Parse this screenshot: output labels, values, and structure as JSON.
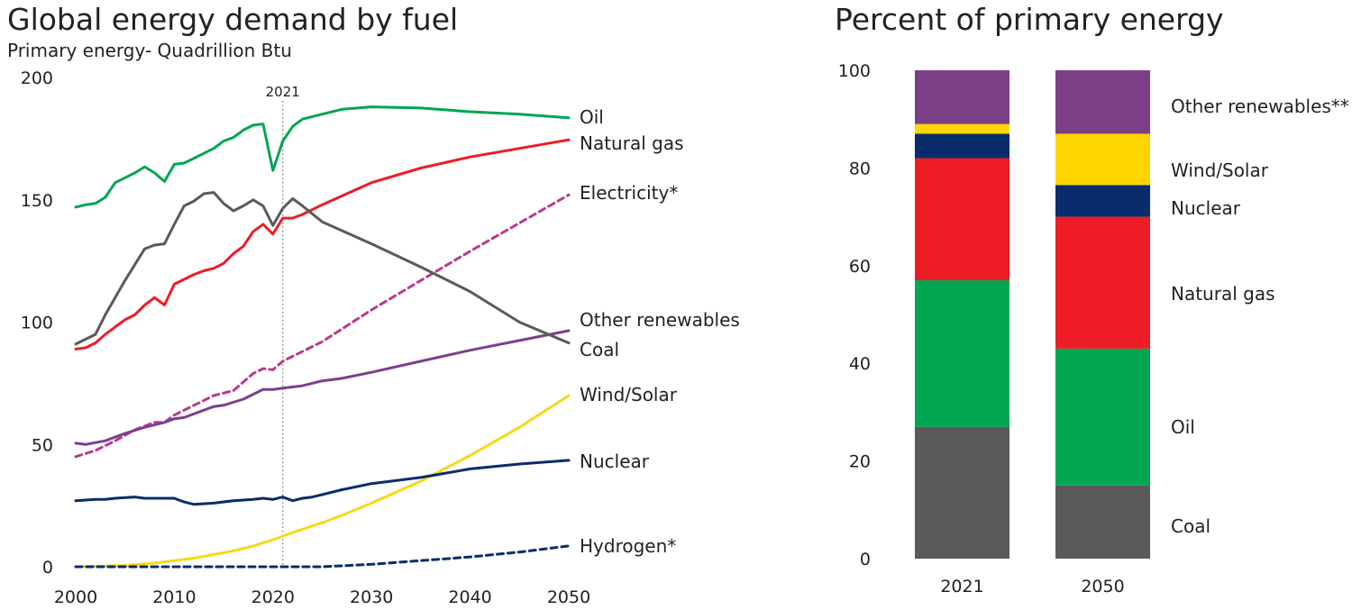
{
  "chart_data": [
    {
      "type": "line",
      "title": "Global energy demand by fuel",
      "subtitle": "Primary energy- Quadrillion Btu",
      "xlabel": "",
      "ylabel": "",
      "xlim": [
        2000,
        2050
      ],
      "ylim": [
        0,
        200
      ],
      "xticks": [
        "2000",
        "2010",
        "2020",
        "2030",
        "2040",
        "2050"
      ],
      "yticks": [
        "0",
        "50",
        "100",
        "150",
        "200"
      ],
      "annotation": {
        "label": "2021",
        "x": 2021
      },
      "grid": false,
      "series": [
        {
          "name": "Oil",
          "color": "#00a651",
          "dash": false,
          "points": [
            [
              2000,
              147
            ],
            [
              2001,
              148
            ],
            [
              2002,
              148.5
            ],
            [
              2003,
              151
            ],
            [
              2004,
              157
            ],
            [
              2005,
              159
            ],
            [
              2006,
              161
            ],
            [
              2007,
              163.5
            ],
            [
              2008,
              161
            ],
            [
              2009,
              157.5
            ],
            [
              2010,
              164.5
            ],
            [
              2011,
              165
            ],
            [
              2012,
              167
            ],
            [
              2013,
              169
            ],
            [
              2014,
              171
            ],
            [
              2015,
              174
            ],
            [
              2016,
              175.5
            ],
            [
              2017,
              178.5
            ],
            [
              2018,
              180.5
            ],
            [
              2019,
              181
            ],
            [
              2020,
              162
            ],
            [
              2021,
              174
            ],
            [
              2022,
              180
            ],
            [
              2023,
              183
            ],
            [
              2025,
              185
            ],
            [
              2027,
              187
            ],
            [
              2030,
              188
            ],
            [
              2035,
              187.5
            ],
            [
              2040,
              186
            ],
            [
              2045,
              185
            ],
            [
              2050,
              183.5
            ]
          ]
        },
        {
          "name": "Natural gas",
          "color": "#ee1c25",
          "dash": false,
          "points": [
            [
              2000,
              89
            ],
            [
              2001,
              89.5
            ],
            [
              2002,
              91.5
            ],
            [
              2003,
              95
            ],
            [
              2004,
              98
            ],
            [
              2005,
              101
            ],
            [
              2006,
              103
            ],
            [
              2007,
              107
            ],
            [
              2008,
              110
            ],
            [
              2009,
              107
            ],
            [
              2010,
              115.5
            ],
            [
              2011,
              117.5
            ],
            [
              2012,
              119.5
            ],
            [
              2013,
              121
            ],
            [
              2014,
              122
            ],
            [
              2015,
              124
            ],
            [
              2016,
              128
            ],
            [
              2017,
              131
            ],
            [
              2018,
              137
            ],
            [
              2019,
              140
            ],
            [
              2020,
              136
            ],
            [
              2021,
              142.5
            ],
            [
              2022,
              142.5
            ],
            [
              2023,
              144
            ],
            [
              2025,
              148
            ],
            [
              2030,
              157
            ],
            [
              2035,
              163
            ],
            [
              2040,
              167.5
            ],
            [
              2045,
              171
            ],
            [
              2050,
              174.5
            ]
          ]
        },
        {
          "name": "Electricity*",
          "color": "#b83b8b",
          "dash": true,
          "points": [
            [
              2000,
              45
            ],
            [
              2002,
              47.5
            ],
            [
              2004,
              51.5
            ],
            [
              2006,
              56
            ],
            [
              2008,
              59
            ],
            [
              2009,
              59
            ],
            [
              2010,
              62
            ],
            [
              2012,
              66
            ],
            [
              2014,
              70
            ],
            [
              2016,
              72
            ],
            [
              2018,
              79
            ],
            [
              2019,
              81
            ],
            [
              2020,
              80.5
            ],
            [
              2021,
              84
            ],
            [
              2025,
              92
            ],
            [
              2030,
              105
            ],
            [
              2035,
              117
            ],
            [
              2040,
              129
            ],
            [
              2045,
              140.5
            ],
            [
              2050,
              152
            ]
          ]
        },
        {
          "name": "Other renewables",
          "color": "#7b3f8e",
          "dash": false,
          "points": [
            [
              2000,
              50.5
            ],
            [
              2001,
              50
            ],
            [
              2003,
              51.5
            ],
            [
              2005,
              54.5
            ],
            [
              2007,
              57
            ],
            [
              2009,
              59
            ],
            [
              2010,
              60.5
            ],
            [
              2011,
              61
            ],
            [
              2013,
              64
            ],
            [
              2014,
              65.5
            ],
            [
              2015,
              66
            ],
            [
              2017,
              68.5
            ],
            [
              2019,
              72.5
            ],
            [
              2020,
              72.5
            ],
            [
              2021,
              73
            ],
            [
              2023,
              74
            ],
            [
              2025,
              76
            ],
            [
              2027,
              77
            ],
            [
              2030,
              79.5
            ],
            [
              2035,
              84
            ],
            [
              2040,
              88.5
            ],
            [
              2045,
              92.5
            ],
            [
              2050,
              96.5
            ]
          ]
        },
        {
          "name": "Coal",
          "color": "#5a5a5a",
          "dash": false,
          "points": [
            [
              2000,
              91
            ],
            [
              2002,
              95
            ],
            [
              2003,
              103
            ],
            [
              2004,
              110
            ],
            [
              2005,
              117
            ],
            [
              2006,
              123.5
            ],
            [
              2007,
              130
            ],
            [
              2008,
              131.5
            ],
            [
              2009,
              132
            ],
            [
              2010,
              140
            ],
            [
              2011,
              147.5
            ],
            [
              2012,
              149.5
            ],
            [
              2013,
              152.5
            ],
            [
              2014,
              153
            ],
            [
              2015,
              148.5
            ],
            [
              2016,
              145.5
            ],
            [
              2017,
              147.5
            ],
            [
              2018,
              150
            ],
            [
              2019,
              147.5
            ],
            [
              2020,
              139.5
            ],
            [
              2021,
              146.5
            ],
            [
              2022,
              150.5
            ],
            [
              2023,
              147.5
            ],
            [
              2025,
              141
            ],
            [
              2030,
              132
            ],
            [
              2035,
              122.5
            ],
            [
              2040,
              112.5
            ],
            [
              2045,
              100
            ],
            [
              2050,
              91.5
            ]
          ]
        },
        {
          "name": "Wind/Solar",
          "color": "#f5d916",
          "dash": false,
          "points": [
            [
              2000,
              0
            ],
            [
              2005,
              0.5
            ],
            [
              2008,
              1.5
            ],
            [
              2010,
              2.5
            ],
            [
              2012,
              3.5
            ],
            [
              2014,
              5
            ],
            [
              2016,
              6.5
            ],
            [
              2018,
              8.5
            ],
            [
              2020,
              11
            ],
            [
              2022,
              14
            ],
            [
              2025,
              18
            ],
            [
              2027,
              21
            ],
            [
              2030,
              26
            ],
            [
              2035,
              35
            ],
            [
              2040,
              45.5
            ],
            [
              2045,
              57
            ],
            [
              2050,
              70
            ]
          ]
        },
        {
          "name": "Nuclear",
          "color": "#0a2c6b",
          "dash": false,
          "points": [
            [
              2000,
              27
            ],
            [
              2002,
              27.5
            ],
            [
              2003,
              27.5
            ],
            [
              2004,
              28
            ],
            [
              2006,
              28.5
            ],
            [
              2007,
              28
            ],
            [
              2008,
              28
            ],
            [
              2009,
              28
            ],
            [
              2010,
              28
            ],
            [
              2011,
              26.5
            ],
            [
              2012,
              25.5
            ],
            [
              2014,
              26
            ],
            [
              2016,
              27
            ],
            [
              2018,
              27.5
            ],
            [
              2019,
              28
            ],
            [
              2020,
              27.5
            ],
            [
              2021,
              28.5
            ],
            [
              2022,
              27
            ],
            [
              2023,
              28
            ],
            [
              2024,
              28.5
            ],
            [
              2025,
              29.5
            ],
            [
              2027,
              31.5
            ],
            [
              2030,
              34
            ],
            [
              2035,
              36.5
            ],
            [
              2040,
              40
            ],
            [
              2045,
              42
            ],
            [
              2050,
              43.5
            ]
          ]
        },
        {
          "name": "Hydrogen*",
          "color": "#0a2c6b",
          "dash": true,
          "points": [
            [
              2000,
              0
            ],
            [
              2025,
              0
            ],
            [
              2030,
              1
            ],
            [
              2035,
              2.5
            ],
            [
              2040,
              4
            ],
            [
              2045,
              6
            ],
            [
              2050,
              8.5
            ]
          ]
        }
      ]
    },
    {
      "type": "bar",
      "stacked": true,
      "title": "Percent of primary energy",
      "xlabel": "",
      "ylabel": "",
      "ylim": [
        0,
        100
      ],
      "yticks": [
        "0",
        "20",
        "40",
        "60",
        "80",
        "100"
      ],
      "categories": [
        "2021",
        "2050"
      ],
      "grid": false,
      "series": [
        {
          "name": "Coal",
          "color": "#5a5a5a",
          "values": [
            27,
            15
          ]
        },
        {
          "name": "Oil",
          "color": "#00a651",
          "values": [
            30,
            28
          ]
        },
        {
          "name": "Natural gas",
          "color": "#ee1c25",
          "values": [
            25,
            27
          ]
        },
        {
          "name": "Nuclear",
          "color": "#0a2c6b",
          "values": [
            5,
            6.5
          ]
        },
        {
          "name": "Wind/Solar",
          "color": "#ffd500",
          "values": [
            2,
            10.5
          ]
        },
        {
          "name": "Other renewables**",
          "color": "#7b3f85",
          "values": [
            11,
            13
          ]
        }
      ]
    }
  ]
}
